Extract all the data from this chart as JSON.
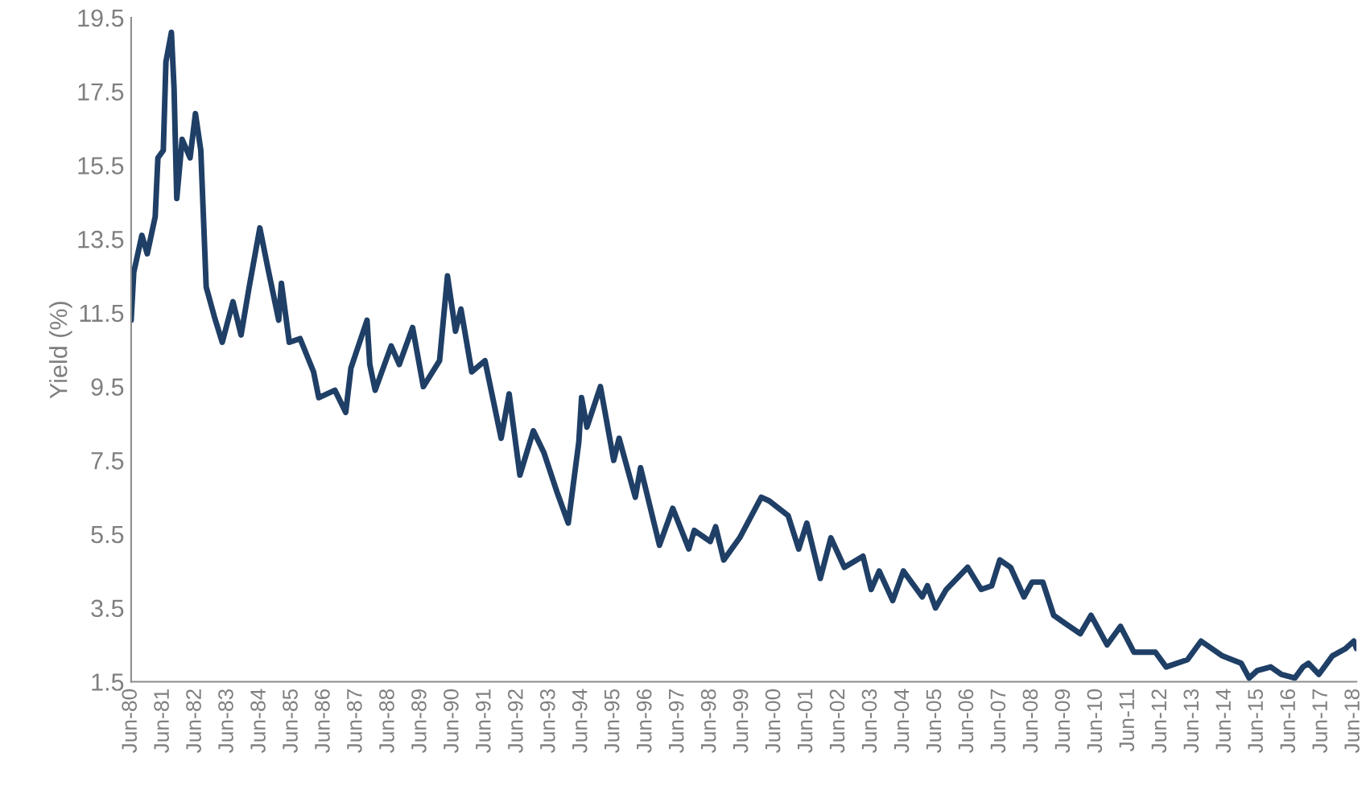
{
  "chart_data": {
    "type": "line",
    "ylabel": "Yield (%)",
    "x": [
      "1980-06",
      "1980-07",
      "1980-10",
      "1980-12",
      "1981-03",
      "1981-04",
      "1981-06",
      "1981-07",
      "1981-09",
      "1981-10",
      "1981-11",
      "1982-01",
      "1982-04",
      "1982-06",
      "1982-08",
      "1982-10",
      "1983-01",
      "1983-04",
      "1983-08",
      "1983-11",
      "1984-02",
      "1984-06",
      "1984-09",
      "1985-01",
      "1985-02",
      "1985-05",
      "1985-09",
      "1986-02",
      "1986-04",
      "1986-10",
      "1987-02",
      "1987-04",
      "1987-10",
      "1987-11",
      "1988-01",
      "1988-07",
      "1988-10",
      "1989-03",
      "1989-07",
      "1990-01",
      "1990-04",
      "1990-07",
      "1990-09",
      "1991-01",
      "1991-06",
      "1991-12",
      "1992-03",
      "1992-07",
      "1992-12",
      "1993-04",
      "1993-09",
      "1994-01",
      "1994-05",
      "1994-06",
      "1994-08",
      "1995-01",
      "1995-06",
      "1995-08",
      "1996-02",
      "1996-04",
      "1996-11",
      "1997-04",
      "1997-10",
      "1997-12",
      "1998-06",
      "1998-08",
      "1998-11",
      "1999-05",
      "2000-01",
      "2000-04",
      "2000-11",
      "2001-03",
      "2001-06",
      "2001-11",
      "2002-03",
      "2002-08",
      "2003-03",
      "2003-06",
      "2003-09",
      "2004-02",
      "2004-06",
      "2005-01",
      "2005-03",
      "2005-06",
      "2005-10",
      "2006-06",
      "2006-11",
      "2007-03",
      "2007-06",
      "2007-10",
      "2008-03",
      "2008-06",
      "2008-10",
      "2009-02",
      "2009-06",
      "2009-12",
      "2010-04",
      "2010-10",
      "2011-03",
      "2011-08",
      "2012-04",
      "2012-08",
      "2013-04",
      "2013-09",
      "2014-05",
      "2014-12",
      "2015-03",
      "2015-06",
      "2015-11",
      "2016-03",
      "2016-08",
      "2016-11",
      "2017-01",
      "2017-05",
      "2017-10",
      "2018-03",
      "2018-06",
      "2018-07"
    ],
    "series": [
      {
        "color": "#1f3f66",
        "values": [
          11.3,
          12.6,
          13.6,
          13.1,
          14.1,
          15.7,
          15.9,
          18.3,
          19.1,
          17.6,
          14.6,
          16.2,
          15.7,
          16.9,
          15.9,
          12.2,
          11.4,
          10.7,
          11.8,
          10.9,
          12.2,
          13.8,
          12.7,
          11.3,
          12.3,
          10.7,
          10.8,
          9.9,
          9.2,
          9.4,
          8.8,
          10.0,
          11.3,
          10.1,
          9.4,
          10.6,
          10.1,
          11.1,
          9.5,
          10.2,
          12.5,
          11.0,
          11.6,
          9.9,
          10.2,
          8.1,
          9.3,
          7.1,
          8.3,
          7.7,
          6.6,
          5.8,
          8.0,
          9.2,
          8.4,
          9.5,
          7.5,
          8.1,
          6.5,
          7.3,
          5.2,
          6.2,
          5.1,
          5.6,
          5.3,
          5.7,
          4.8,
          5.4,
          6.5,
          6.4,
          6.0,
          5.1,
          5.8,
          4.3,
          5.4,
          4.6,
          4.9,
          4.0,
          4.5,
          3.7,
          4.5,
          3.8,
          4.1,
          3.5,
          4.0,
          4.6,
          4.0,
          4.1,
          4.8,
          4.6,
          3.8,
          4.2,
          4.2,
          3.3,
          3.1,
          2.8,
          3.3,
          2.5,
          3.0,
          2.3,
          2.3,
          1.9,
          2.1,
          2.6,
          2.2,
          2.0,
          1.6,
          1.8,
          1.9,
          1.7,
          1.6,
          1.9,
          2.0,
          1.7,
          2.2,
          2.4,
          2.6,
          2.4
        ]
      }
    ],
    "xlim": [
      "1980-06",
      "2018-07"
    ],
    "xticks": [
      {
        "value": "1980-06",
        "label": "Jun-80"
      },
      {
        "value": "1981-06",
        "label": "Jun-81"
      },
      {
        "value": "1982-06",
        "label": "Jun-82"
      },
      {
        "value": "1983-06",
        "label": "Jun-83"
      },
      {
        "value": "1984-06",
        "label": "Jun-84"
      },
      {
        "value": "1985-06",
        "label": "Jun-85"
      },
      {
        "value": "1986-06",
        "label": "Jun-86"
      },
      {
        "value": "1987-06",
        "label": "Jun-87"
      },
      {
        "value": "1988-06",
        "label": "Jun-88"
      },
      {
        "value": "1989-06",
        "label": "Jun-89"
      },
      {
        "value": "1990-06",
        "label": "Jun-90"
      },
      {
        "value": "1991-06",
        "label": "Jun-91"
      },
      {
        "value": "1992-06",
        "label": "Jun-92"
      },
      {
        "value": "1993-06",
        "label": "Jun-93"
      },
      {
        "value": "1994-06",
        "label": "Jun-94"
      },
      {
        "value": "1995-06",
        "label": "Jun-95"
      },
      {
        "value": "1996-06",
        "label": "Jun-96"
      },
      {
        "value": "1997-06",
        "label": "Jun-97"
      },
      {
        "value": "1998-06",
        "label": "Jun-98"
      },
      {
        "value": "1999-06",
        "label": "Jun-99"
      },
      {
        "value": "2000-06",
        "label": "Jun-00"
      },
      {
        "value": "2001-06",
        "label": "Jun-01"
      },
      {
        "value": "2002-06",
        "label": "Jun-02"
      },
      {
        "value": "2003-06",
        "label": "Jun-03"
      },
      {
        "value": "2004-06",
        "label": "Jun-04"
      },
      {
        "value": "2005-06",
        "label": "Jun-05"
      },
      {
        "value": "2006-06",
        "label": "Jun-06"
      },
      {
        "value": "2007-06",
        "label": "Jun-07"
      },
      {
        "value": "2008-06",
        "label": "Jun-08"
      },
      {
        "value": "2009-06",
        "label": "Jun-09"
      },
      {
        "value": "2010-06",
        "label": "Jun-10"
      },
      {
        "value": "2011-06",
        "label": "Jun-11"
      },
      {
        "value": "2012-06",
        "label": "Jun-12"
      },
      {
        "value": "2013-06",
        "label": "Jun-13"
      },
      {
        "value": "2014-06",
        "label": "Jun-14"
      },
      {
        "value": "2015-06",
        "label": "Jun-15"
      },
      {
        "value": "2016-06",
        "label": "Jun-16"
      },
      {
        "value": "2017-06",
        "label": "Jun-17"
      },
      {
        "value": "2018-06",
        "label": "Jun-18"
      }
    ],
    "ylim": [
      1.5,
      19.5
    ],
    "yticks": [
      1.5,
      3.5,
      5.5,
      7.5,
      9.5,
      11.5,
      13.5,
      15.5,
      17.5,
      19.5
    ],
    "grid": false,
    "legend": false,
    "marker": "none",
    "line_style": "solid"
  }
}
